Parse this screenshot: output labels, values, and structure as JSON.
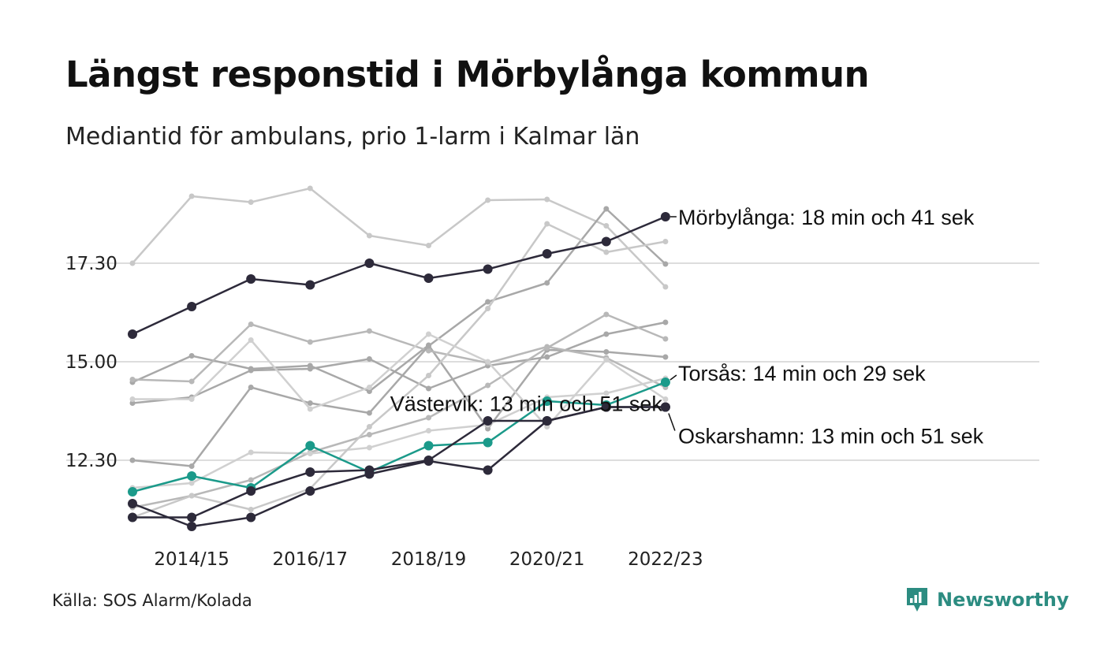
{
  "title": "Längst responstid i Mörbylånga kommun",
  "subtitle": "Mediantid för ambulans, prio 1-larm i Kalmar län",
  "source": "Källa: SOS Alarm/Kolada",
  "brand": "Newsworthy",
  "colors": {
    "highlight_dark": "#2d2a3a",
    "highlight_teal": "#1b9a8a",
    "background_series": [
      "#c8c8c8",
      "#a8a8a8",
      "#b8b8b8",
      "#d0d0d0"
    ],
    "gridline": "#dddddd",
    "brand": "#2c8c81"
  },
  "chart_data": {
    "type": "line",
    "x": [
      "2013/14",
      "2014/15",
      "2015/16",
      "2016/17",
      "2017/18",
      "2018/19",
      "2019/20",
      "2020/21",
      "2021/22",
      "2022/23"
    ],
    "x_tick_labels": [
      "2014/15",
      "2016/17",
      "2018/19",
      "2020/21",
      "2022/23"
    ],
    "y_unit": "minutes",
    "y_ticks": [
      {
        "value": 12.5,
        "label": "12.30"
      },
      {
        "value": 15.0,
        "label": "15.00"
      },
      {
        "value": 17.5,
        "label": "17.30"
      }
    ],
    "ylim": [
      10.4,
      19.9
    ],
    "grid": "horizontal",
    "series": [
      {
        "name": "Mörbylånga",
        "role": "highlight",
        "color": "#2d2a3a",
        "values": [
          15.7,
          16.4,
          17.1,
          16.95,
          17.5,
          17.12,
          17.35,
          17.74,
          18.05,
          18.68
        ],
        "label": "Mörbylånga: 18 min och 41 sek"
      },
      {
        "name": "Torsås",
        "role": "highlight",
        "color": "#1b9a8a",
        "values": [
          11.7,
          12.1,
          11.8,
          12.87,
          12.2,
          12.87,
          12.95,
          14.0,
          13.9,
          14.48
        ],
        "label": "Torsås: 14 min och 29 sek"
      },
      {
        "name": "Oskarshamn",
        "role": "highlight",
        "color": "#2d2a3a",
        "values": [
          11.4,
          10.82,
          11.05,
          11.72,
          12.15,
          12.48,
          12.25,
          13.5,
          13.85,
          13.85
        ],
        "label": "Oskarshamn: 13 min och 51 sek"
      },
      {
        "name": "Västervik",
        "role": "highlight",
        "color": "#2d2a3a",
        "values": [
          11.05,
          11.05,
          11.72,
          12.2,
          12.25,
          12.5,
          13.5,
          13.5,
          13.85,
          13.85
        ],
        "label": "Västervik: 13 min och 51 sek"
      },
      {
        "role": "background",
        "color": "#c8c8c8",
        "values": [
          17.5,
          19.2,
          19.05,
          19.4,
          18.2,
          17.95,
          19.1,
          19.12,
          18.45,
          16.9
        ]
      },
      {
        "role": "background",
        "color": "#a8a8a8",
        "values": [
          13.95,
          14.1,
          14.78,
          14.82,
          15.07,
          14.32,
          14.9,
          15.12,
          15.7,
          16.0
        ]
      },
      {
        "role": "background",
        "color": "#a8a8a8",
        "values": [
          14.48,
          15.15,
          14.82,
          14.9,
          14.25,
          15.42,
          13.3,
          15.3,
          15.25,
          15.12
        ]
      },
      {
        "role": "background",
        "color": "#b8b8b8",
        "values": [
          11.3,
          11.6,
          12.0,
          12.7,
          13.15,
          13.58,
          14.4,
          15.35,
          16.2,
          15.58
        ]
      },
      {
        "role": "background",
        "color": "#b8b8b8",
        "values": [
          14.55,
          14.5,
          15.95,
          15.5,
          15.78,
          15.28,
          14.97,
          15.38,
          15.1,
          14.35
        ]
      },
      {
        "role": "background",
        "color": "#d0d0d0",
        "values": [
          11.8,
          11.92,
          12.7,
          12.67,
          12.82,
          13.25,
          13.4,
          14.1,
          14.2,
          14.58
        ]
      },
      {
        "role": "background",
        "color": "#a8a8a8",
        "values": [
          12.5,
          12.35,
          14.35,
          13.95,
          13.7,
          15.4,
          16.52,
          17.0,
          18.88,
          17.48
        ]
      },
      {
        "role": "background",
        "color": "#c8c8c8",
        "values": [
          11.05,
          11.6,
          11.25,
          11.78,
          13.35,
          14.65,
          16.35,
          18.5,
          17.78,
          18.05
        ]
      },
      {
        "role": "background",
        "color": "#d0d0d0",
        "values": [
          14.05,
          14.05,
          15.55,
          13.8,
          14.35,
          15.7,
          15.0,
          13.35,
          15.05,
          14.05
        ]
      }
    ]
  }
}
